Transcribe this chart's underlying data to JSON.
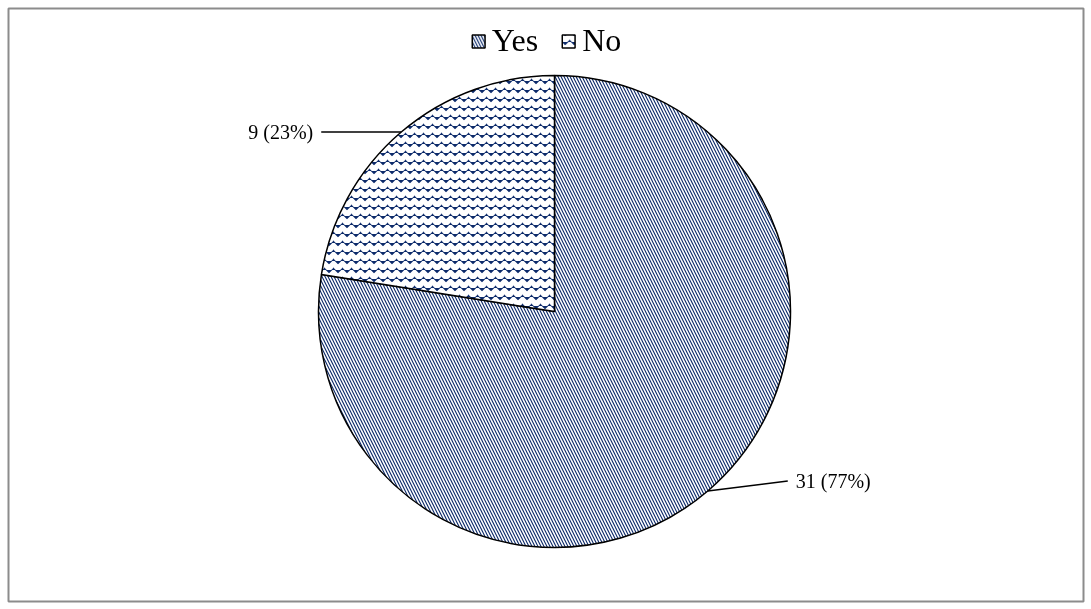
{
  "chart_data": {
    "type": "pie",
    "categories": [
      "Yes",
      "No"
    ],
    "values": [
      31,
      9
    ],
    "value_labels": [
      "31 (77%)",
      "9 (23%)"
    ],
    "colors": [
      "#0d2b6b",
      "#0d2b6b"
    ],
    "legend": "top"
  }
}
